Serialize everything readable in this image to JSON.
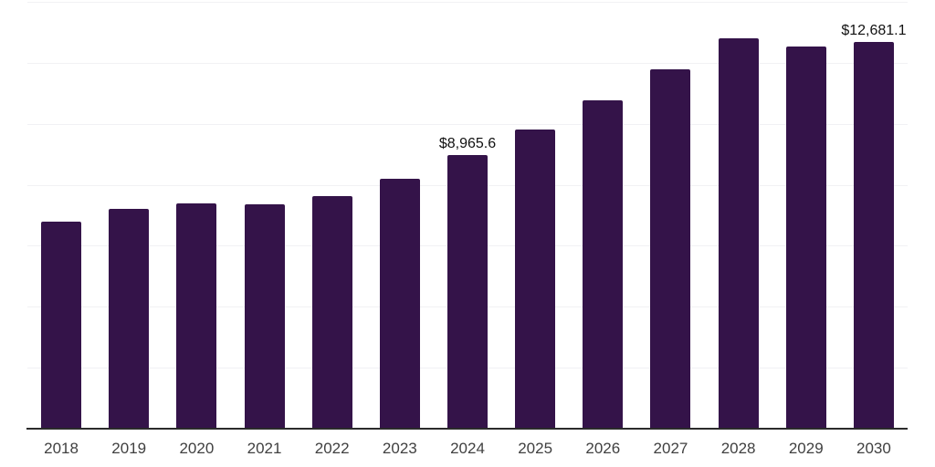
{
  "chart_data": {
    "type": "bar",
    "title": "",
    "xlabel": "",
    "ylabel": "",
    "categories": [
      "2018",
      "2019",
      "2020",
      "2021",
      "2022",
      "2023",
      "2024",
      "2025",
      "2026",
      "2027",
      "2028",
      "2029",
      "2030"
    ],
    "values": [
      6780,
      7210,
      7390,
      7370,
      7620,
      8200,
      8965.6,
      9810,
      10770,
      11780,
      12800,
      12520,
      12681.1
    ],
    "currency_prefix": "$",
    "data_labels": [
      {
        "category": "2024",
        "text": "$8,965.6"
      },
      {
        "category": "2030",
        "text": "$12,681.1"
      }
    ],
    "ylim": [
      0,
      14000
    ],
    "gridline_values": [
      2000,
      4000,
      6000,
      8000,
      10000,
      12000,
      14000
    ],
    "grid": true,
    "legend": "none",
    "colors": {
      "bar": "#341349",
      "gridline": "#f1f1f4",
      "axis": "#2b2b2b",
      "tick_label": "#404040",
      "data_label": "#111111",
      "background": "#ffffff"
    }
  }
}
